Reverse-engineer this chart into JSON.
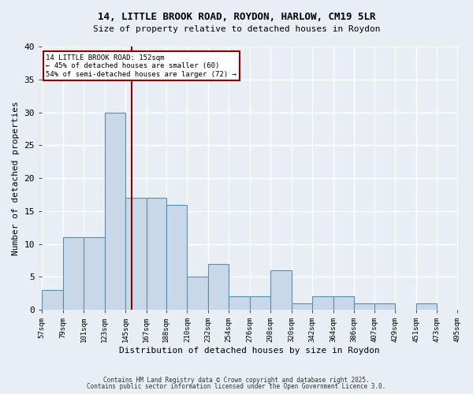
{
  "title1": "14, LITTLE BROOK ROAD, ROYDON, HARLOW, CM19 5LR",
  "title2": "Size of property relative to detached houses in Roydon",
  "xlabel": "Distribution of detached houses by size in Roydon",
  "ylabel": "Number of detached properties",
  "bin_labels": [
    "57sqm",
    "79sqm",
    "101sqm",
    "123sqm",
    "145sqm",
    "167sqm",
    "188sqm",
    "210sqm",
    "232sqm",
    "254sqm",
    "276sqm",
    "298sqm",
    "320sqm",
    "342sqm",
    "364sqm",
    "386sqm",
    "407sqm",
    "429sqm",
    "451sqm",
    "473sqm",
    "495sqm"
  ],
  "bin_edges": [
    57,
    79,
    101,
    123,
    145,
    167,
    188,
    210,
    232,
    254,
    276,
    298,
    320,
    342,
    364,
    386,
    407,
    429,
    451,
    473,
    495
  ],
  "bar_heights": [
    3,
    11,
    11,
    30,
    17,
    17,
    16,
    5,
    7,
    2,
    2,
    6,
    1,
    2,
    2,
    1,
    1,
    0,
    1,
    0
  ],
  "bar_color": "#c8d8e8",
  "bar_edge_color": "#5590b8",
  "property_size": 152,
  "vline_color": "#8b0000",
  "annotation_title": "14 LITTLE BROOK ROAD: 152sqm",
  "annotation_line1": "← 45% of detached houses are smaller (60)",
  "annotation_line2": "54% of semi-detached houses are larger (72) →",
  "footnote1": "Contains HM Land Registry data © Crown copyright and database right 2025.",
  "footnote2": "Contains public sector information licensed under the Open Government Licence 3.0.",
  "ylim": [
    0,
    40
  ],
  "yticks": [
    0,
    5,
    10,
    15,
    20,
    25,
    30,
    35,
    40
  ],
  "bg_color": "#e8eef4",
  "plot_bg_color": "#e8eef4",
  "grid_color": "#ffffff"
}
